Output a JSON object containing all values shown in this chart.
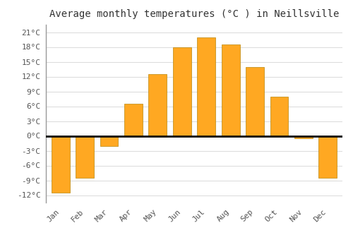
{
  "title": "Average monthly temperatures (°C ) in Neillsville",
  "months": [
    "Jan",
    "Feb",
    "Mar",
    "Apr",
    "May",
    "Jun",
    "Jul",
    "Aug",
    "Sep",
    "Oct",
    "Nov",
    "Dec"
  ],
  "values": [
    -11.5,
    -8.5,
    -2.0,
    6.5,
    12.5,
    18.0,
    20.0,
    18.5,
    14.0,
    8.0,
    -0.5,
    -8.5
  ],
  "bar_color": "#FFA822",
  "bar_edge_color": "#B8860B",
  "background_color": "#ffffff",
  "plot_bg_color": "#ffffff",
  "ylim": [
    -13.5,
    22.5
  ],
  "yticks": [
    -12,
    -9,
    -6,
    -3,
    0,
    3,
    6,
    9,
    12,
    15,
    18,
    21
  ],
  "ytick_labels": [
    "-12°C",
    "-9°C",
    "-6°C",
    "-3°C",
    "0°C",
    "3°C",
    "6°C",
    "9°C",
    "12°C",
    "15°C",
    "18°C",
    "21°C"
  ],
  "grid_color": "#dddddd",
  "title_fontsize": 10,
  "tick_fontsize": 8,
  "bar_width": 0.75
}
